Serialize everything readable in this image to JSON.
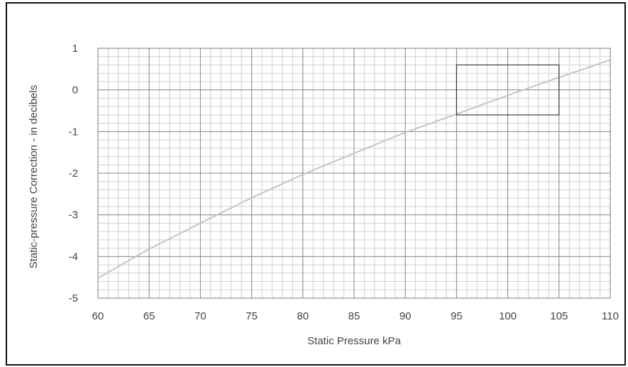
{
  "chart_data": {
    "type": "line",
    "title": "",
    "xlabel": "Static Pressure kPa",
    "ylabel": "Static-pressure Correction - in decibels",
    "xlim": [
      60,
      110
    ],
    "ylim": [
      -5,
      1
    ],
    "x_ticks": [
      "60",
      "65",
      "70",
      "75",
      "80",
      "85",
      "90",
      "95",
      "100",
      "105",
      "110"
    ],
    "y_ticks": [
      "1",
      "0",
      "-1",
      "-2",
      "-3",
      "-4",
      "-5"
    ],
    "grid": true,
    "series": [
      {
        "x": [
          60,
          65,
          70,
          75,
          80,
          85,
          90,
          95,
          100,
          105,
          110
        ],
        "y": [
          -4.52,
          -3.82,
          -3.2,
          -2.59,
          -2.03,
          -1.52,
          -1.02,
          -0.58,
          -0.13,
          0.3,
          0.72
        ]
      }
    ],
    "highlight_box": {
      "x": [
        95,
        105
      ],
      "y": [
        -0.6,
        0.6
      ]
    },
    "colors": {
      "line": "#c4c4c4",
      "major_grid": "#8a8a8a",
      "minor_grid": "#d0d0d0",
      "box": "#222222",
      "frame": "#111111"
    }
  }
}
